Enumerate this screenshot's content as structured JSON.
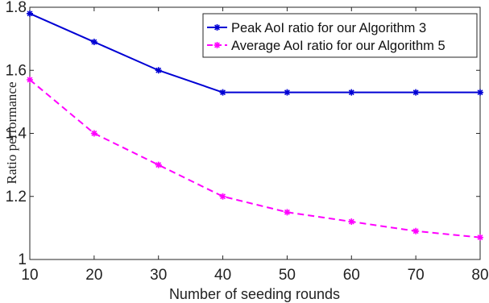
{
  "chart_data": {
    "type": "line",
    "xlabel": "Number of seeding rounds",
    "ylabel": "Ratio performance",
    "xlim": [
      10,
      80
    ],
    "ylim": [
      1,
      1.8
    ],
    "xticks": [
      10,
      20,
      30,
      40,
      50,
      60,
      70,
      80
    ],
    "yticks": [
      1,
      1.2,
      1.4,
      1.6,
      1.8
    ],
    "xtick_labels": [
      "10",
      "20",
      "30",
      "40",
      "50",
      "60",
      "70",
      "80"
    ],
    "ytick_labels": [
      "1",
      "1.2",
      "1.4",
      "1.6",
      "1.8"
    ],
    "grid": false,
    "legend_position": "top-right",
    "x": [
      10,
      20,
      30,
      40,
      50,
      60,
      70,
      80
    ],
    "series": [
      {
        "name": "Peak AoI ratio for our Algorithm 3",
        "values": [
          1.78,
          1.69,
          1.6,
          1.53,
          1.53,
          1.53,
          1.53,
          1.53
        ],
        "color": "#0000d4",
        "line_style": "solid",
        "marker": "asterisk"
      },
      {
        "name": "Average AoI ratio for our Algorithm 5",
        "values": [
          1.57,
          1.4,
          1.3,
          1.2,
          1.15,
          1.12,
          1.09,
          1.07
        ],
        "color": "#ff00ff",
        "line_style": "dashed",
        "marker": "asterisk"
      }
    ]
  }
}
